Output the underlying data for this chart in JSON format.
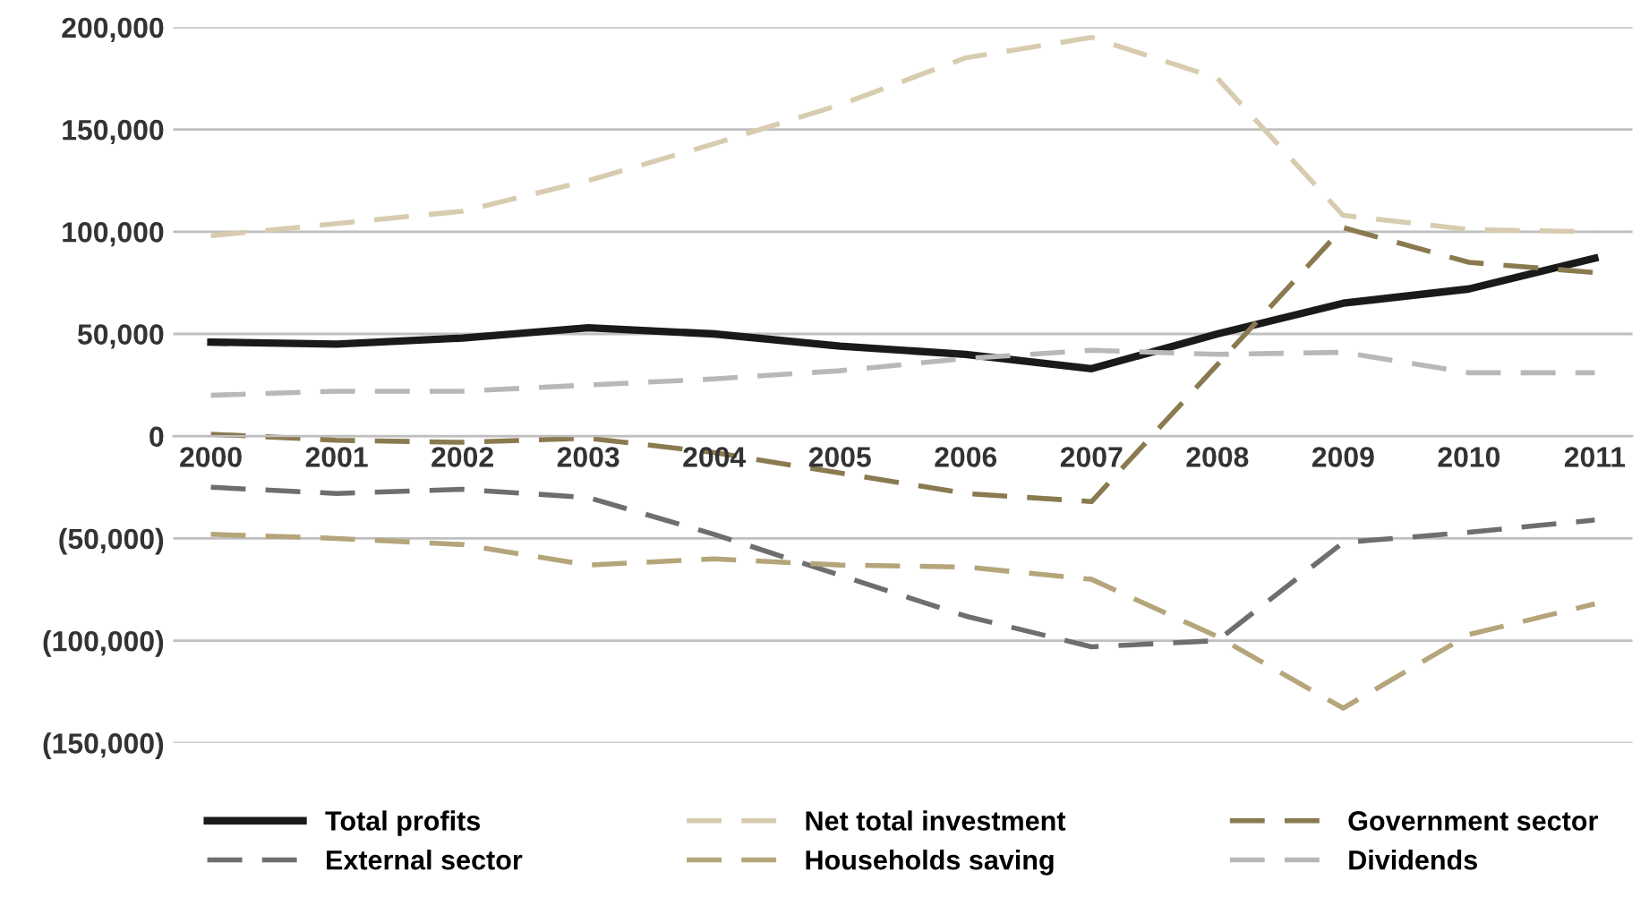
{
  "chart_data": {
    "type": "line",
    "categories": [
      "2000",
      "2001",
      "2002",
      "2003",
      "2004",
      "2005",
      "2006",
      "2007",
      "2008",
      "2009",
      "2010",
      "2011"
    ],
    "series": [
      {
        "name": "Total profits",
        "color": "#1a1a1a",
        "line_style": "solid",
        "values": [
          46000,
          45000,
          48000,
          53000,
          50000,
          44000,
          40000,
          33000,
          50000,
          65000,
          72000,
          87000
        ]
      },
      {
        "name": "Net total investment",
        "color": "#d8ccb0",
        "line_style": "dashed",
        "values": [
          98000,
          104000,
          110000,
          125000,
          143000,
          162000,
          185000,
          195000,
          175000,
          108000,
          101000,
          100000
        ]
      },
      {
        "name": "Government sector",
        "color": "#8a7a50",
        "line_style": "dashed",
        "values": [
          1000,
          -2000,
          -3000,
          -1000,
          -8000,
          -18000,
          -28000,
          -32000,
          35000,
          102000,
          85000,
          80000
        ]
      },
      {
        "name": "External sector",
        "color": "#6e6e6e",
        "line_style": "dashed",
        "values": [
          -25000,
          -28000,
          -26000,
          -30000,
          -48000,
          -68000,
          -88000,
          -103000,
          -100000,
          -52000,
          -47000,
          -41000
        ]
      },
      {
        "name": "Households saving",
        "color": "#b5a57a",
        "line_style": "dashed",
        "values": [
          -48000,
          -50000,
          -53000,
          -63000,
          -60000,
          -63000,
          -64000,
          -70000,
          -98000,
          -133000,
          -97000,
          -82000
        ]
      },
      {
        "name": "Dividends",
        "color": "#b8b8b8",
        "line_style": "dashed",
        "values": [
          20000,
          22000,
          22000,
          25000,
          28000,
          32000,
          38000,
          42000,
          40000,
          41000,
          31000,
          31000
        ]
      }
    ],
    "ylim": [
      -150000,
      200000
    ],
    "yticks": [
      {
        "value": -150000,
        "label": "(150,000)"
      },
      {
        "value": -100000,
        "label": "(100,000)"
      },
      {
        "value": -50000,
        "label": "(50,000)"
      },
      {
        "value": 0,
        "label": "0"
      },
      {
        "value": 50000,
        "label": "50,000"
      },
      {
        "value": 100000,
        "label": "100,000"
      },
      {
        "value": 150000,
        "label": "150,000"
      },
      {
        "value": 200000,
        "label": "200,000"
      }
    ],
    "grid": "y",
    "legend": "bottom",
    "marker": "none"
  }
}
